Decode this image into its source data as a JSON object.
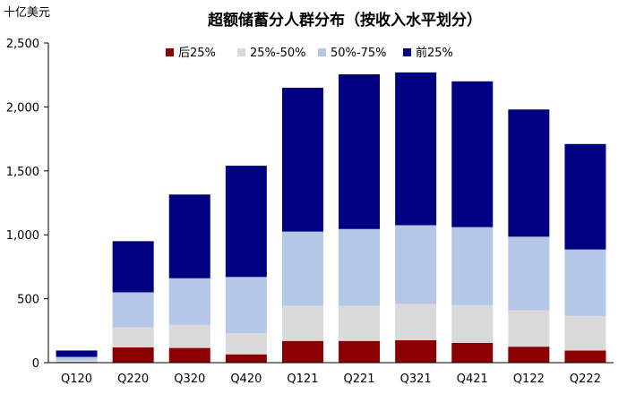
{
  "chart_data": {
    "type": "bar",
    "stacked": true,
    "title": "超额储蓄分人群分布（按收入水平划分）",
    "unit_label": "十亿美元",
    "categories": [
      "Q120",
      "Q220",
      "Q320",
      "Q420",
      "Q121",
      "Q221",
      "Q321",
      "Q421",
      "Q122",
      "Q222"
    ],
    "series": [
      {
        "name": "后25%",
        "color": "#8b0000",
        "values": [
          5,
          120,
          115,
          65,
          170,
          170,
          175,
          155,
          125,
          95
        ]
      },
      {
        "name": "25%-50%",
        "color": "#d9d9d9",
        "values": [
          15,
          155,
          180,
          165,
          275,
          275,
          285,
          295,
          285,
          270
        ]
      },
      {
        "name": "50%-75%",
        "color": "#b4c7e7",
        "values": [
          25,
          275,
          365,
          440,
          580,
          600,
          615,
          610,
          575,
          520
        ]
      },
      {
        "name": "前25%",
        "color": "#000080",
        "values": [
          50,
          400,
          655,
          870,
          1125,
          1210,
          1195,
          1140,
          995,
          825
        ]
      }
    ],
    "ylim": [
      0,
      2500
    ],
    "yticks": [
      0,
      500,
      1000,
      1500,
      2000,
      2500
    ],
    "ytick_labels": [
      "0",
      "500",
      "1,000",
      "1,500",
      "2,000",
      "2,500"
    ],
    "grid": false,
    "legend_position": "top"
  }
}
